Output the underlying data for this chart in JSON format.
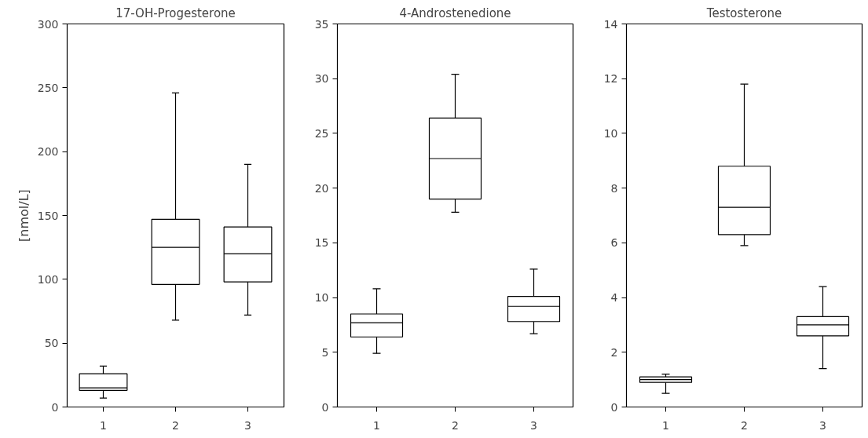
{
  "chart_data": [
    {
      "type": "box",
      "title": "17-OH-Progesterone",
      "ylabel": "[nmol/L]",
      "categories": [
        "1",
        "2",
        "3"
      ],
      "ylim": [
        0,
        300
      ],
      "yticks": [
        0,
        50,
        100,
        150,
        200,
        250,
        300
      ],
      "grid": false,
      "color": "#000000",
      "boxes": [
        {
          "low": 7,
          "q1": 13,
          "median": 15,
          "q3": 26,
          "high": 32
        },
        {
          "low": 68,
          "q1": 96,
          "median": 125,
          "q3": 147,
          "high": 246
        },
        {
          "low": 72,
          "q1": 98,
          "median": 120,
          "q3": 141,
          "high": 190
        }
      ]
    },
    {
      "type": "box",
      "title": "4-Androstenedione",
      "categories": [
        "1",
        "2",
        "3"
      ],
      "ylim": [
        0,
        35
      ],
      "yticks": [
        0,
        5,
        10,
        15,
        20,
        25,
        30,
        35
      ],
      "grid": false,
      "color": "#000000",
      "boxes": [
        {
          "low": 4.9,
          "q1": 6.4,
          "median": 7.7,
          "q3": 8.5,
          "high": 10.8
        },
        {
          "low": 17.8,
          "q1": 19.0,
          "median": 22.7,
          "q3": 26.4,
          "high": 30.4
        },
        {
          "low": 6.7,
          "q1": 7.8,
          "median": 9.2,
          "q3": 10.1,
          "high": 12.6
        }
      ]
    },
    {
      "type": "box",
      "title": "Testosterone",
      "categories": [
        "1",
        "2",
        "3"
      ],
      "ylim": [
        0,
        14
      ],
      "yticks": [
        0,
        2,
        4,
        6,
        8,
        10,
        12,
        14
      ],
      "grid": false,
      "color": "#000000",
      "boxes": [
        {
          "low": 0.5,
          "q1": 0.9,
          "median": 1.0,
          "q3": 1.1,
          "high": 1.2
        },
        {
          "low": 5.9,
          "q1": 6.3,
          "median": 7.3,
          "q3": 8.8,
          "high": 11.8
        },
        {
          "low": 1.4,
          "q1": 2.6,
          "median": 3.0,
          "q3": 3.3,
          "high": 4.4
        }
      ]
    }
  ]
}
